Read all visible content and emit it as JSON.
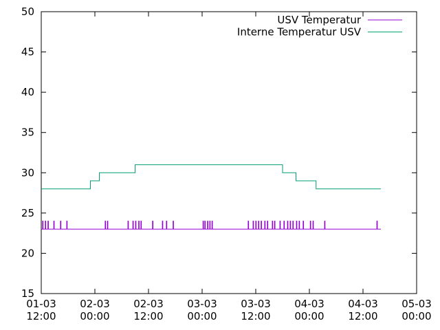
{
  "chart_data": {
    "type": "step",
    "series": [
      {
        "name": "USV Temperatur",
        "color": "#9400d3",
        "x": [
          0,
          0.3,
          0.4,
          0.9,
          1.0,
          1.5,
          1.6,
          2.8,
          2.9,
          4.3,
          4.4,
          5.7,
          5.8,
          14.3,
          14.4,
          14.8,
          14.9,
          19.4,
          19.5,
          20.5,
          20.6,
          21.1,
          21.2,
          21.8,
          21.9,
          22.3,
          22.4,
          24.9,
          25.0,
          27.1,
          27.2,
          28,
          28.1,
          29.5,
          29.6,
          36.2,
          36.3,
          36.6,
          36.7,
          37.2,
          37.3,
          37.7,
          37.8,
          38.2,
          38.3,
          46.3,
          46.4,
          47.4,
          47.5,
          48,
          48.1,
          48.6,
          48.7,
          49.2,
          49.3,
          50,
          50.1,
          50.6,
          50.7,
          51.7,
          51.8,
          52.2,
          52.3,
          53.4,
          53.5,
          54.3,
          54.4,
          55.1,
          55.2,
          55.7,
          55.8,
          56.3,
          56.4,
          57.1,
          57.2,
          57.7,
          57.8,
          58.6,
          58.7,
          60.2,
          60.3,
          60.8,
          60.9,
          63.4,
          63.5,
          75.1,
          75.2,
          76
        ],
        "values": [
          23,
          24,
          23,
          24,
          23,
          24,
          23,
          24,
          23,
          24,
          23,
          24,
          23,
          24,
          23,
          24,
          23,
          24,
          23,
          24,
          23,
          24,
          23,
          24,
          23,
          24,
          23,
          24,
          23,
          24,
          23,
          24,
          23,
          24,
          23,
          24,
          23,
          24,
          23,
          24,
          23,
          24,
          23,
          24,
          23,
          24,
          23,
          24,
          23,
          24,
          23,
          24,
          23,
          24,
          23,
          24,
          23,
          24,
          23,
          24,
          23,
          24,
          23,
          24,
          23,
          24,
          23,
          24,
          23,
          24,
          23,
          24,
          23,
          24,
          23,
          24,
          23,
          24,
          23,
          24,
          23,
          24,
          23,
          24,
          23,
          24,
          23,
          23
        ]
      },
      {
        "name": "Interne Temperatur USV",
        "color": "#009e73",
        "x": [
          0,
          11,
          13,
          21,
          54,
          57,
          61.5,
          76
        ],
        "values": [
          28,
          29,
          30,
          31,
          30,
          29,
          28,
          28
        ]
      }
    ],
    "xlim": [
      0,
      84
    ],
    "ylim": [
      15,
      50
    ],
    "xticks": [
      {
        "value": 0,
        "label": "01-03 12:00"
      },
      {
        "value": 12,
        "label": "02-03 00:00"
      },
      {
        "value": 24,
        "label": "02-03 12:00"
      },
      {
        "value": 36,
        "label": "03-03 00:00"
      },
      {
        "value": 48,
        "label": "03-03 12:00"
      },
      {
        "value": 60,
        "label": "04-03 00:00"
      },
      {
        "value": 72,
        "label": "04-03 12:00"
      },
      {
        "value": 84,
        "label": "05-03 00:00"
      }
    ],
    "yticks": [
      15,
      20,
      25,
      30,
      35,
      40,
      45,
      50
    ],
    "legend": "top-right"
  }
}
